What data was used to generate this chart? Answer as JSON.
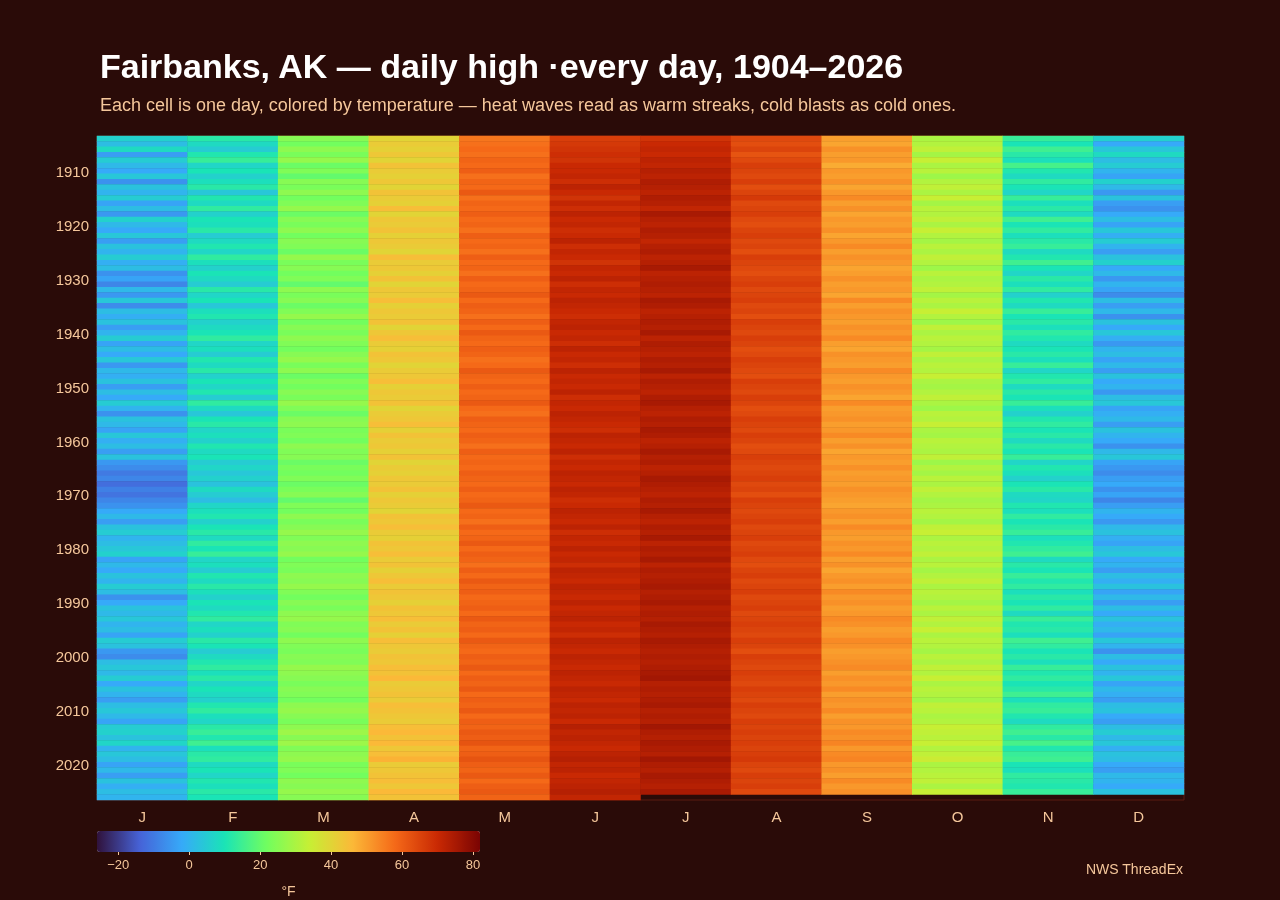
{
  "chart_data": {
    "type": "heatmap",
    "title": "Fairbanks, AK — daily high ·every day, 1904–2026",
    "subtitle": "Each cell is one day, colored by temperature — heat waves read as warm streaks, cold blasts as cold ones.",
    "clabel": "°F",
    "annotations": [
      "NWS ThreadEx"
    ],
    "categories": [
      "J",
      "F",
      "M",
      "A",
      "M",
      "J",
      "J",
      "A",
      "S",
      "O",
      "N",
      "D"
    ],
    "y_categories": [
      null,
      null,
      null,
      null,
      null,
      null,
      "1910",
      null,
      null,
      null,
      null,
      null,
      null,
      null,
      null,
      null,
      "1920",
      null,
      null,
      null,
      null,
      null,
      null,
      null,
      null,
      null,
      "1930",
      null,
      null,
      null,
      null,
      null,
      null,
      null,
      null,
      null,
      "1940",
      null,
      null,
      null,
      null,
      null,
      null,
      null,
      null,
      null,
      "1950",
      null,
      null,
      null,
      null,
      null,
      null,
      null,
      null,
      null,
      "1960",
      null,
      null,
      null,
      null,
      null,
      null,
      null,
      null,
      null,
      "1970",
      null,
      null,
      null,
      null,
      null,
      null,
      null,
      null,
      null,
      "1980",
      null,
      null,
      null,
      null,
      null,
      null,
      null,
      null,
      null,
      "1990",
      null,
      null,
      null,
      null,
      null,
      null,
      null,
      null,
      null,
      "2000",
      null,
      null,
      null,
      null,
      null,
      null,
      null,
      null,
      null,
      "2010",
      null,
      null,
      null,
      null,
      null,
      null,
      null,
      null,
      null,
      "2020",
      null,
      null,
      null,
      null,
      null,
      null
    ],
    "cells": [
      [
        6,
        12,
        25,
        40,
        56,
        66,
        68,
        64,
        50,
        30,
        14,
        6
      ],
      [
        2,
        8,
        22,
        42,
        57,
        67,
        70,
        63,
        49,
        31,
        10,
        -2
      ],
      [
        8,
        5,
        26,
        41,
        58,
        68,
        71,
        65,
        52,
        33,
        15,
        4
      ],
      [
        -4,
        11,
        23,
        43,
        57,
        69,
        70,
        62,
        50,
        29,
        12,
        8
      ],
      [
        5,
        14,
        27,
        40,
        59,
        68,
        72,
        64,
        51,
        34,
        9,
        2
      ],
      [
        1,
        7,
        21,
        44,
        58,
        70,
        71,
        66,
        48,
        30,
        16,
        5
      ],
      [
        -2,
        10,
        24,
        42,
        60,
        70,
        73,
        65,
        51,
        32,
        11,
        0
      ],
      [
        4,
        6,
        20,
        41,
        57,
        71,
        72,
        64,
        50,
        28,
        8,
        -3
      ],
      [
        -6,
        9,
        25,
        43,
        59,
        69,
        74,
        66,
        52,
        31,
        13,
        6
      ],
      [
        3,
        12,
        23,
        40,
        58,
        72,
        73,
        63,
        49,
        33,
        10,
        1
      ],
      [
        0,
        4,
        26,
        44,
        61,
        70,
        72,
        65,
        51,
        30,
        7,
        -5
      ],
      [
        5,
        11,
        22,
        42,
        57,
        68,
        74,
        67,
        53,
        34,
        14,
        3
      ],
      [
        -3,
        8,
        24,
        41,
        59,
        71,
        73,
        64,
        50,
        29,
        9,
        -4
      ],
      [
        2,
        13,
        27,
        45,
        58,
        69,
        71,
        65,
        52,
        32,
        12,
        -6
      ],
      [
        -5,
        6,
        21,
        40,
        60,
        72,
        75,
        66,
        49,
        31,
        8,
        -2
      ],
      [
        6,
        10,
        25,
        43,
        58,
        70,
        73,
        64,
        51,
        33,
        15,
        2
      ],
      [
        1,
        9,
        23,
        42,
        59,
        71,
        72,
        63,
        50,
        30,
        10,
        -3
      ],
      [
        -2,
        12,
        26,
        44,
        57,
        69,
        74,
        65,
        52,
        34,
        13,
        4
      ],
      [
        4,
        5,
        22,
        41,
        60,
        70,
        73,
        66,
        49,
        31,
        9,
        -1
      ],
      [
        -4,
        8,
        25,
        43,
        58,
        72,
        71,
        64,
        51,
        29,
        12,
        5
      ],
      [
        3,
        11,
        24,
        42,
        59,
        69,
        73,
        65,
        53,
        32,
        14,
        0
      ],
      [
        0,
        7,
        21,
        40,
        57,
        71,
        74,
        63,
        50,
        30,
        8,
        -4
      ],
      [
        5,
        13,
        27,
        45,
        60,
        70,
        72,
        66,
        52,
        33,
        11,
        3
      ],
      [
        -1,
        9,
        23,
        42,
        58,
        68,
        73,
        65,
        51,
        31,
        15,
        6
      ],
      [
        2,
        6,
        25,
        43,
        59,
        71,
        75,
        64,
        49,
        28,
        10,
        -2
      ],
      [
        -6,
        10,
        22,
        41,
        57,
        70,
        72,
        63,
        50,
        32,
        7,
        1
      ],
      [
        -3,
        8,
        24,
        44,
        60,
        72,
        73,
        65,
        52,
        30,
        12,
        -5
      ],
      [
        -8,
        5,
        20,
        40,
        58,
        69,
        74,
        66,
        50,
        31,
        9,
        0
      ],
      [
        1,
        12,
        26,
        43,
        59,
        71,
        73,
        64,
        51,
        33,
        13,
        -3
      ],
      [
        -5,
        7,
        23,
        42,
        61,
        70,
        72,
        65,
        49,
        29,
        6,
        -7
      ],
      [
        4,
        10,
        25,
        45,
        58,
        72,
        75,
        66,
        53,
        32,
        11,
        2
      ],
      [
        -7,
        4,
        21,
        41,
        60,
        71,
        74,
        64,
        50,
        30,
        8,
        -4
      ],
      [
        2,
        9,
        24,
        43,
        59,
        70,
        72,
        65,
        52,
        34,
        14,
        1
      ],
      [
        -1,
        11,
        27,
        42,
        57,
        69,
        73,
        63,
        51,
        31,
        10,
        -6
      ],
      [
        3,
        6,
        22,
        44,
        60,
        71,
        74,
        66,
        50,
        28,
        12,
        3
      ],
      [
        -4,
        8,
        25,
        40,
        58,
        72,
        73,
        65,
        52,
        33,
        9,
        -2
      ],
      [
        0,
        10,
        23,
        43,
        61,
        70,
        75,
        64,
        51,
        30,
        13,
        4
      ],
      [
        5,
        13,
        26,
        45,
        59,
        71,
        72,
        66,
        53,
        32,
        11,
        -1
      ],
      [
        -3,
        7,
        24,
        42,
        58,
        69,
        74,
        65,
        50,
        31,
        8,
        -5
      ],
      [
        2,
        9,
        22,
        41,
        60,
        72,
        73,
        63,
        49,
        29,
        10,
        0
      ],
      [
        -2,
        5,
        25,
        44,
        59,
        70,
        72,
        64,
        52,
        33,
        12,
        2
      ],
      [
        4,
        11,
        27,
        43,
        57,
        71,
        74,
        66,
        51,
        30,
        9,
        -3
      ],
      [
        -5,
        8,
        23,
        40,
        58,
        69,
        73,
        65,
        50,
        32,
        14,
        1
      ],
      [
        1,
        12,
        26,
        42,
        61,
        72,
        75,
        64,
        53,
        31,
        7,
        -4
      ],
      [
        -1,
        6,
        21,
        43,
        59,
        70,
        72,
        63,
        51,
        34,
        11,
        3
      ],
      [
        3,
        10,
        24,
        45,
        58,
        71,
        74,
        66,
        50,
        30,
        13,
        -2
      ],
      [
        -4,
        7,
        22,
        41,
        60,
        70,
        73,
        65,
        52,
        29,
        8,
        0
      ],
      [
        2,
        11,
        25,
        43,
        58,
        72,
        72,
        64,
        51,
        31,
        12,
        -5
      ],
      [
        -2,
        5,
        23,
        42,
        59,
        69,
        74,
        66,
        49,
        33,
        10,
        2
      ],
      [
        5,
        13,
        27,
        44,
        61,
        71,
        75,
        65,
        53,
        30,
        14,
        4
      ],
      [
        0,
        8,
        24,
        40,
        58,
        70,
        73,
        63,
        50,
        28,
        9,
        -3
      ],
      [
        -6,
        4,
        21,
        42,
        57,
        72,
        72,
        64,
        51,
        32,
        6,
        -1
      ],
      [
        3,
        10,
        25,
        43,
        60,
        71,
        74,
        66,
        52,
        31,
        11,
        1
      ],
      [
        1,
        12,
        26,
        45,
        59,
        70,
        73,
        65,
        50,
        34,
        13,
        -4
      ],
      [
        -3,
        7,
        23,
        41,
        58,
        69,
        75,
        64,
        51,
        30,
        10,
        3
      ],
      [
        4,
        9,
        24,
        44,
        60,
        72,
        74,
        66,
        53,
        29,
        12,
        0
      ],
      [
        -1,
        6,
        22,
        42,
        59,
        71,
        72,
        65,
        50,
        32,
        8,
        -2
      ],
      [
        2,
        11,
        26,
        43,
        57,
        70,
        73,
        63,
        52,
        31,
        12,
        -6
      ],
      [
        -4,
        8,
        24,
        41,
        60,
        72,
        75,
        64,
        49,
        30,
        10,
        1
      ],
      [
        3,
        10,
        25,
        44,
        58,
        69,
        73,
        66,
        51,
        33,
        14,
        4
      ],
      [
        -5,
        5,
        21,
        40,
        59,
        71,
        74,
        65,
        50,
        28,
        7,
        -3
      ],
      [
        -7,
        7,
        23,
        42,
        58,
        70,
        72,
        64,
        52,
        31,
        11,
        -5
      ],
      [
        -10,
        4,
        22,
        41,
        60,
        72,
        73,
        65,
        50,
        29,
        9,
        -7
      ],
      [
        -8,
        6,
        24,
        43,
        59,
        71,
        75,
        66,
        51,
        32,
        6,
        -4
      ],
      [
        -12,
        3,
        21,
        42,
        58,
        70,
        74,
        64,
        50,
        30,
        10,
        -2
      ],
      [
        -9,
        8,
        23,
        44,
        60,
        72,
        73,
        65,
        52,
        33,
        12,
        -6
      ],
      [
        -11,
        5,
        25,
        41,
        58,
        71,
        72,
        63,
        51,
        31,
        8,
        -3
      ],
      [
        -8,
        2,
        20,
        43,
        59,
        69,
        74,
        66,
        50,
        29,
        7,
        -8
      ],
      [
        -6,
        7,
        24,
        42,
        61,
        70,
        73,
        65,
        49,
        30,
        11,
        -4
      ],
      [
        -2,
        9,
        22,
        40,
        58,
        72,
        75,
        64,
        51,
        32,
        9,
        0
      ],
      [
        1,
        11,
        26,
        44,
        59,
        71,
        73,
        65,
        52,
        31,
        13,
        -2
      ],
      [
        -4,
        6,
        23,
        43,
        57,
        70,
        72,
        66,
        50,
        29,
        10,
        -5
      ],
      [
        3,
        10,
        25,
        45,
        60,
        72,
        74,
        64,
        53,
        33,
        12,
        1
      ],
      [
        5,
        12,
        27,
        42,
        58,
        69,
        73,
        65,
        51,
        34,
        14,
        3
      ],
      [
        0,
        8,
        24,
        41,
        59,
        71,
        75,
        66,
        50,
        30,
        9,
        -1
      ],
      [
        2,
        13,
        26,
        44,
        61,
        70,
        72,
        64,
        52,
        32,
        11,
        -3
      ],
      [
        4,
        10,
        25,
        43,
        58,
        72,
        74,
        65,
        51,
        31,
        13,
        2
      ],
      [
        6,
        14,
        27,
        45,
        60,
        70,
        73,
        66,
        53,
        33,
        15,
        4
      ],
      [
        -3,
        7,
        22,
        42,
        59,
        71,
        75,
        64,
        50,
        30,
        8,
        -2
      ],
      [
        1,
        9,
        24,
        44,
        57,
        69,
        72,
        63,
        52,
        32,
        12,
        0
      ],
      [
        -2,
        5,
        23,
        41,
        60,
        72,
        74,
        65,
        49,
        29,
        10,
        -4
      ],
      [
        3,
        11,
        26,
        43,
        58,
        71,
        73,
        66,
        51,
        31,
        14,
        2
      ],
      [
        0,
        8,
        25,
        45,
        61,
        70,
        74,
        64,
        52,
        33,
        11,
        -1
      ],
      [
        5,
        12,
        27,
        42,
        59,
        72,
        75,
        65,
        50,
        30,
        13,
        3
      ],
      [
        2,
        9,
        24,
        44,
        60,
        71,
        73,
        66,
        53,
        32,
        9,
        -3
      ],
      [
        -6,
        6,
        22,
        43,
        58,
        70,
        74,
        64,
        51,
        31,
        12,
        1
      ],
      [
        -2,
        10,
        25,
        41,
        59,
        72,
        75,
        65,
        52,
        29,
        10,
        -4
      ],
      [
        3,
        8,
        23,
        44,
        60,
        70,
        73,
        66,
        50,
        32,
        13,
        2
      ],
      [
        1,
        11,
        26,
        43,
        58,
        71,
        74,
        64,
        51,
        30,
        8,
        -2
      ],
      [
        4,
        13,
        27,
        45,
        61,
        72,
        73,
        65,
        53,
        33,
        14,
        3
      ],
      [
        0,
        7,
        24,
        42,
        59,
        70,
        75,
        66,
        52,
        31,
        11,
        -1
      ],
      [
        2,
        9,
        25,
        44,
        60,
        71,
        74,
        65,
        50,
        34,
        12,
        1
      ],
      [
        -3,
        6,
        22,
        41,
        58,
        69,
        73,
        64,
        51,
        30,
        9,
        -3
      ],
      [
        5,
        12,
        26,
        45,
        61,
        72,
        75,
        66,
        53,
        32,
        15,
        4
      ],
      [
        3,
        10,
        24,
        43,
        59,
        71,
        74,
        65,
        52,
        31,
        13,
        0
      ],
      [
        -5,
        5,
        23,
        42,
        58,
        70,
        73,
        63,
        50,
        29,
        10,
        -6
      ],
      [
        -7,
        8,
        25,
        44,
        60,
        72,
        74,
        66,
        51,
        32,
        12,
        2
      ],
      [
        2,
        11,
        24,
        43,
        59,
        71,
        73,
        65,
        52,
        30,
        9,
        -2
      ],
      [
        4,
        13,
        27,
        45,
        61,
        70,
        74,
        64,
        53,
        33,
        14,
        3
      ],
      [
        1,
        9,
        26,
        44,
        58,
        72,
        75,
        66,
        50,
        31,
        11,
        0
      ],
      [
        5,
        12,
        25,
        46,
        60,
        71,
        76,
        65,
        52,
        34,
        13,
        4
      ],
      [
        -2,
        7,
        23,
        42,
        59,
        70,
        73,
        64,
        51,
        30,
        10,
        -3
      ],
      [
        3,
        10,
        25,
        43,
        61,
        72,
        74,
        66,
        53,
        32,
        12,
        1
      ],
      [
        0,
        8,
        24,
        44,
        58,
        71,
        73,
        65,
        50,
        31,
        15,
        -1
      ],
      [
        -4,
        6,
        22,
        42,
        60,
        70,
        74,
        64,
        52,
        29,
        9,
        -4
      ],
      [
        2,
        11,
        26,
        45,
        59,
        72,
        75,
        66,
        51,
        33,
        13,
        2
      ],
      [
        4,
        13,
        27,
        44,
        61,
        71,
        73,
        65,
        53,
        32,
        14,
        3
      ],
      [
        1,
        9,
        25,
        43,
        58,
        72,
        74,
        64,
        50,
        30,
        11,
        -2
      ],
      [
        -3,
        7,
        23,
        42,
        60,
        70,
        73,
        66,
        52,
        31,
        8,
        -4
      ],
      [
        5,
        12,
        26,
        45,
        59,
        73,
        76,
        65,
        51,
        34,
        13,
        2
      ],
      [
        6,
        14,
        28,
        46,
        61,
        71,
        74,
        66,
        53,
        33,
        15,
        5
      ],
      [
        3,
        11,
        25,
        44,
        60,
        72,
        73,
        65,
        52,
        32,
        12,
        1
      ],
      [
        7,
        15,
        28,
        46,
        62,
        71,
        75,
        66,
        54,
        34,
        16,
        4
      ],
      [
        0,
        9,
        24,
        43,
        59,
        70,
        74,
        65,
        51,
        31,
        11,
        -1
      ],
      [
        4,
        12,
        26,
        45,
        60,
        72,
        73,
        66,
        53,
        33,
        14,
        3
      ],
      [
        2,
        13,
        27,
        47,
        62,
        73,
        76,
        67,
        54,
        35,
        15,
        2
      ],
      [
        -3,
        8,
        23,
        42,
        60,
        71,
        74,
        65,
        51,
        30,
        10,
        -2
      ],
      [
        1,
        10,
        24,
        43,
        59,
        72,
        73,
        64,
        52,
        31,
        9,
        -4
      ],
      [
        -4,
        7,
        22,
        44,
        61,
        70,
        75,
        66,
        50,
        32,
        13,
        1
      ],
      [
        3,
        11,
        26,
        45,
        58,
        71,
        74,
        65,
        53,
        33,
        12,
        0
      ],
      [
        -1,
        9,
        25,
        43,
        60,
        72,
        73,
        66,
        51,
        30,
        11,
        -2
      ],
      [
        2,
        12,
        27,
        46,
        61,
        73,
        75,
        64,
        52,
        34,
        14,
        3
      ],
      [
        0,
        10,
        25,
        44,
        59,
        71,
        null,
        null,
        null,
        null,
        null,
        null
      ]
    ],
    "clim": [
      -26,
      82
    ],
    "cticks": [
      {
        "value": -20,
        "label": "−20"
      },
      0,
      20,
      40,
      60,
      80
    ]
  }
}
